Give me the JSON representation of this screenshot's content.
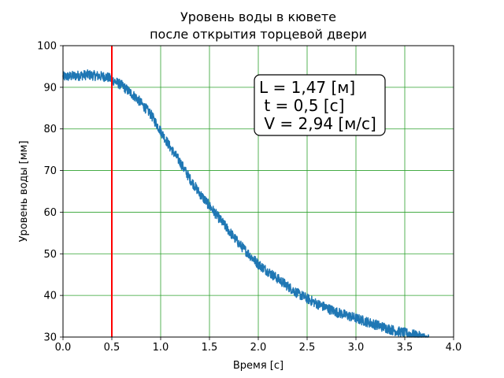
{
  "chart_data": {
    "type": "line",
    "title_line1": "Уровень воды в кювете",
    "title_line2": "после открытия торцевой двери",
    "xlabel": "Время [с]",
    "ylabel": "Уровень воды [мм]",
    "xlim": [
      0.0,
      4.0
    ],
    "ylim": [
      30,
      100
    ],
    "x_ticks": [
      0.0,
      0.5,
      1.0,
      1.5,
      2.0,
      2.5,
      3.0,
      3.5,
      4.0
    ],
    "x_tick_labels": [
      "0.0",
      "0.5",
      "1.0",
      "1.5",
      "2.0",
      "2.5",
      "3.0",
      "3.5",
      "4.0"
    ],
    "y_ticks": [
      30,
      40,
      50,
      60,
      70,
      80,
      90,
      100
    ],
    "y_tick_labels": [
      "30",
      "40",
      "50",
      "60",
      "70",
      "80",
      "90",
      "100"
    ],
    "grid": true,
    "grid_color": "#2ca02c",
    "series": [
      {
        "color": "#1f77b4",
        "noise_amplitude": 1.2,
        "x": [
          0.0,
          0.25,
          0.45,
          0.6,
          0.75,
          0.9,
          1.0,
          1.1,
          1.2,
          1.3,
          1.4,
          1.5,
          1.6,
          1.7,
          1.8,
          1.9,
          2.0,
          2.2,
          2.4,
          2.6,
          2.8,
          3.0,
          3.2,
          3.4,
          3.6,
          3.75
        ],
        "y": [
          92.5,
          93.0,
          92.5,
          90.5,
          87.5,
          83.5,
          79.5,
          75.5,
          72.0,
          68.0,
          64.5,
          61.5,
          58.5,
          55.5,
          52.5,
          50.0,
          47.5,
          44.0,
          40.5,
          38.0,
          36.0,
          34.5,
          33.0,
          31.5,
          30.5,
          29.5
        ]
      }
    ],
    "marker_line": {
      "x": 0.5,
      "color": "#ff0000"
    },
    "annotation": {
      "lines": [
        "L = 1,47 [м]",
        " t = 0,5 [с]",
        " V = 2,94 [м/с]"
      ]
    }
  }
}
